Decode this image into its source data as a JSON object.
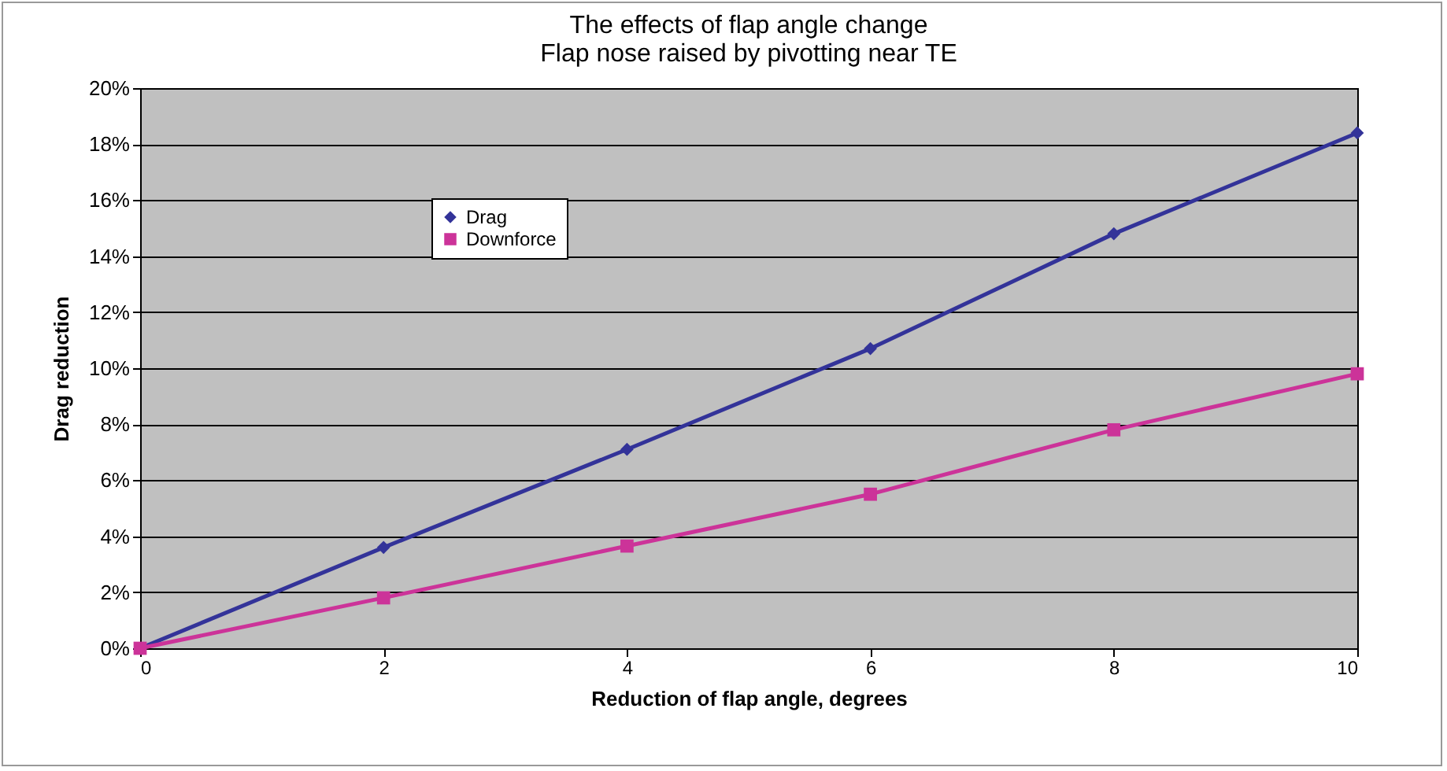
{
  "chart_data": {
    "type": "line",
    "title": "The effects of flap angle change",
    "subtitle": "Flap nose raised by pivotting near TE",
    "xlabel": "Reduction of flap angle, degrees",
    "ylabel": "Drag reduction",
    "x": [
      0,
      2,
      4,
      6,
      8,
      10
    ],
    "series": [
      {
        "name": "Drag",
        "color": "#333399",
        "marker": "diamond",
        "values": [
          0,
          3.6,
          7.1,
          10.7,
          14.8,
          18.4
        ]
      },
      {
        "name": "Downforce",
        "color": "#cc3399",
        "marker": "square",
        "values": [
          0,
          1.8,
          3.65,
          5.5,
          7.8,
          9.8
        ]
      }
    ],
    "xlim": [
      0,
      10
    ],
    "xticks": [
      0,
      2,
      4,
      6,
      8,
      10
    ],
    "ylim": [
      0,
      20
    ],
    "yticks": [
      {
        "value": 0,
        "label": "0%"
      },
      {
        "value": 2,
        "label": "2%"
      },
      {
        "value": 4,
        "label": "4%"
      },
      {
        "value": 6,
        "label": "6%"
      },
      {
        "value": 8,
        "label": "8%"
      },
      {
        "value": 10,
        "label": "10%"
      },
      {
        "value": 12,
        "label": "12%"
      },
      {
        "value": 14,
        "label": "14%"
      },
      {
        "value": 16,
        "label": "16%"
      },
      {
        "value": 18,
        "label": "18%"
      },
      {
        "value": 20,
        "label": "20%"
      }
    ],
    "grid": "y",
    "legend": "top left",
    "line_style": "solid"
  }
}
